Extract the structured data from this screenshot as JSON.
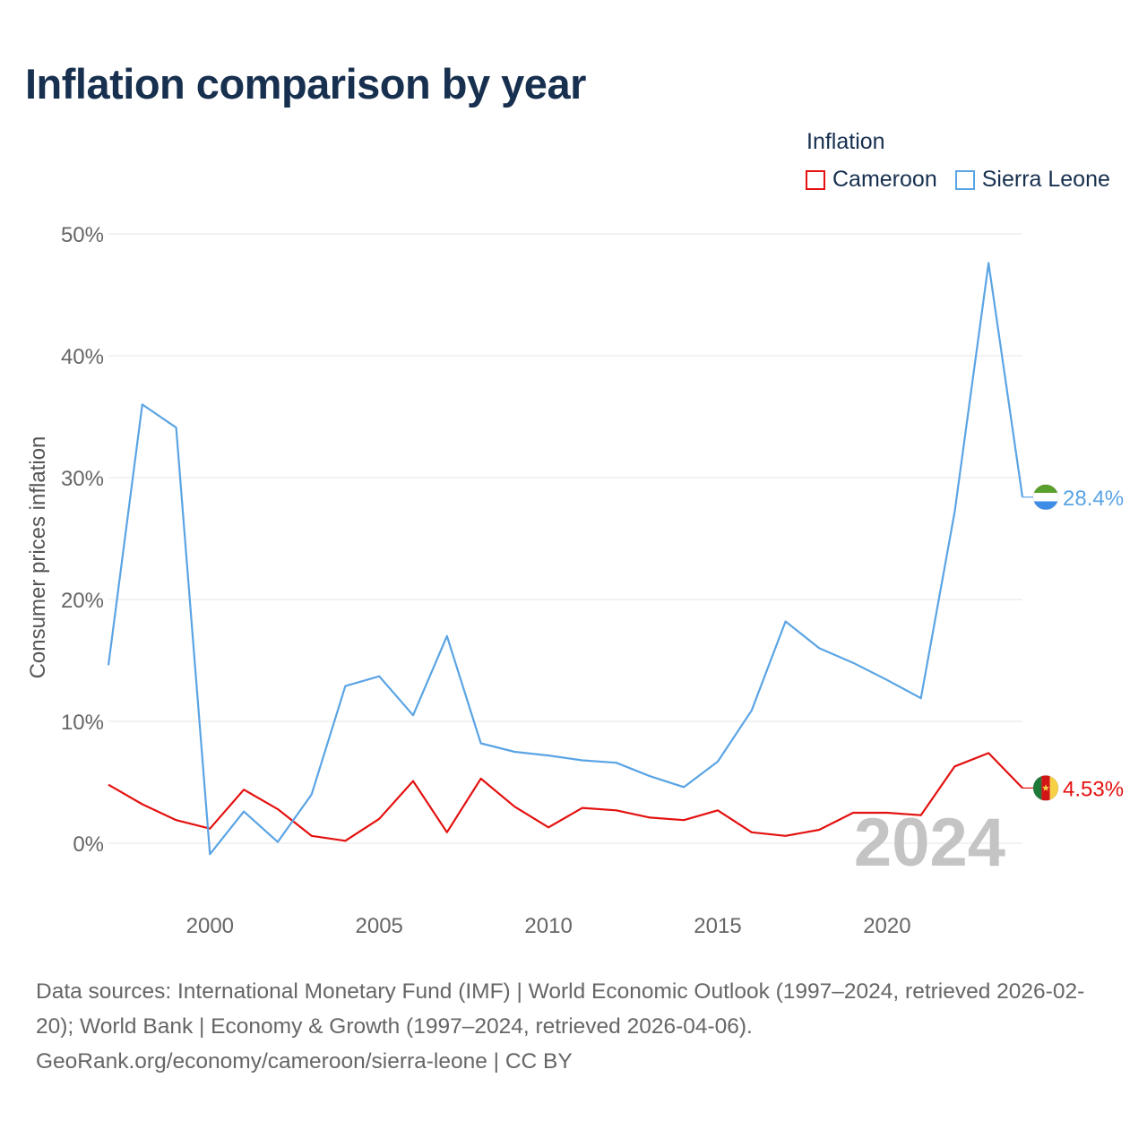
{
  "title": "Inflation comparison by year",
  "legend": {
    "title": "Inflation",
    "items": [
      {
        "label": "Cameroon",
        "color": "#e3110f"
      },
      {
        "label": "Sierra Leone",
        "color": "#5aa4e4"
      }
    ]
  },
  "chart_data": {
    "type": "line",
    "title": "Inflation comparison by year",
    "xlabel": "",
    "ylabel": "Consumer prices inflation",
    "xlim": [
      1997,
      2024
    ],
    "ylim": [
      -5,
      55
    ],
    "yticks": [
      0,
      10,
      20,
      30,
      40,
      50
    ],
    "ytick_labels": [
      "0%",
      "10%",
      "20%",
      "30%",
      "40%",
      "50%"
    ],
    "xticks": [
      2000,
      2005,
      2010,
      2015,
      2020
    ],
    "xtick_labels": [
      "2000",
      "2005",
      "2010",
      "2015",
      "2020"
    ],
    "grid": true,
    "watermark_year": "2024",
    "x": [
      1997,
      1998,
      1999,
      2000,
      2001,
      2002,
      2003,
      2004,
      2005,
      2006,
      2007,
      2008,
      2009,
      2010,
      2011,
      2012,
      2013,
      2014,
      2015,
      2016,
      2017,
      2018,
      2019,
      2020,
      2021,
      2022,
      2023,
      2024
    ],
    "series": [
      {
        "name": "Cameroon",
        "color": "#e3110f",
        "values": [
          4.8,
          3.2,
          1.9,
          1.2,
          4.4,
          2.8,
          0.6,
          0.2,
          2.0,
          5.1,
          0.9,
          5.3,
          3.0,
          1.3,
          2.9,
          2.7,
          2.1,
          1.9,
          2.7,
          0.9,
          0.6,
          1.1,
          2.5,
          2.5,
          2.3,
          6.3,
          7.4,
          4.53
        ],
        "end_label": "4.53%"
      },
      {
        "name": "Sierra Leone",
        "color": "#5aa4e4",
        "values": [
          14.6,
          36.0,
          34.1,
          -0.9,
          2.6,
          0.1,
          4.0,
          12.9,
          13.7,
          10.5,
          17.0,
          8.2,
          7.5,
          7.2,
          6.8,
          6.6,
          5.5,
          4.6,
          6.7,
          10.9,
          18.2,
          16.0,
          14.8,
          13.4,
          11.9,
          27.2,
          47.6,
          28.4
        ],
        "end_label": "28.4%"
      }
    ]
  },
  "source": {
    "line1": "Data sources: International Monetary Fund (IMF) | World Economic Outlook (1997–2024, retrieved 2026-02-20); World Bank | Economy & Growth (1997–2024, retrieved 2026-04-06).",
    "line2": "GeoRank.org/economy/cameroon/sierra-leone | CC BY"
  }
}
